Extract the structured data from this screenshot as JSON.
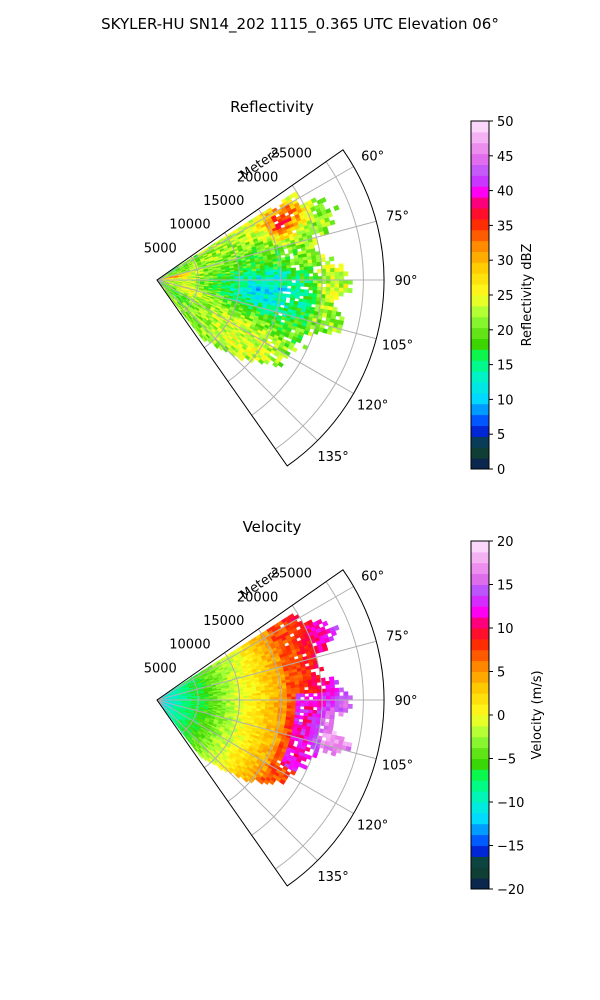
{
  "title": "SKYLER-HU  SN14_202  1115_0.365 UTC Elevation 06°",
  "chart_data": [
    {
      "type": "heatmap",
      "title": "Reflectivity",
      "radial_label": "Meters",
      "radial_ticks": [
        "5000",
        "10000",
        "15000",
        "20000",
        "25000"
      ],
      "radial_values": [
        5000,
        10000,
        15000,
        20000,
        25000
      ],
      "rmax": 27500,
      "theta_range_deg": [
        55,
        145
      ],
      "angle_ticks": [
        "60°",
        "75°",
        "90°",
        "105°",
        "120°",
        "135°"
      ],
      "angle_values": [
        60,
        75,
        90,
        105,
        120,
        135
      ],
      "grid": true,
      "colorbar": {
        "label": "Reflectivity dBZ",
        "range": [
          0,
          50
        ],
        "ticks": [
          "0",
          "5",
          "10",
          "15",
          "20",
          "25",
          "30",
          "35",
          "40",
          "45",
          "50"
        ],
        "tick_values": [
          0,
          5,
          10,
          15,
          20,
          25,
          30,
          35,
          40,
          45,
          50
        ],
        "stops": [
          {
            "v": 0,
            "c": "#0a1a5c"
          },
          {
            "v": 2,
            "c": "#0e3b36"
          },
          {
            "v": 3.5,
            "c": "#0d4a2e"
          },
          {
            "v": 5,
            "c": "#0018c8"
          },
          {
            "v": 7,
            "c": "#0055ff"
          },
          {
            "v": 10,
            "c": "#00d8ff"
          },
          {
            "v": 13,
            "c": "#00f2d0"
          },
          {
            "v": 16,
            "c": "#00ff60"
          },
          {
            "v": 18,
            "c": "#3ed400"
          },
          {
            "v": 22,
            "c": "#9cff3a"
          },
          {
            "v": 25,
            "c": "#ffff20"
          },
          {
            "v": 29,
            "c": "#ffcc00"
          },
          {
            "v": 32,
            "c": "#ff8c00"
          },
          {
            "v": 35,
            "c": "#ff3000"
          },
          {
            "v": 37.5,
            "c": "#ff0040"
          },
          {
            "v": 40,
            "c": "#ff00ff"
          },
          {
            "v": 42,
            "c": "#b44dff"
          },
          {
            "v": 45,
            "c": "#e874e8"
          },
          {
            "v": 50,
            "c": "#ffe8ff"
          }
        ]
      }
    },
    {
      "type": "heatmap",
      "title": "Velocity",
      "radial_label": "Meters",
      "radial_ticks": [
        "5000",
        "10000",
        "15000",
        "20000",
        "25000"
      ],
      "radial_values": [
        5000,
        10000,
        15000,
        20000,
        25000
      ],
      "rmax": 27500,
      "theta_range_deg": [
        55,
        145
      ],
      "angle_ticks": [
        "60°",
        "75°",
        "90°",
        "105°",
        "120°",
        "135°"
      ],
      "angle_values": [
        60,
        75,
        90,
        105,
        120,
        135
      ],
      "grid": true,
      "colorbar": {
        "label": "Velocity (m/s)",
        "range": [
          -20,
          20
        ],
        "ticks": [
          "−20",
          "−15",
          "−10",
          "−5",
          "0",
          "5",
          "10",
          "15",
          "20"
        ],
        "tick_values": [
          -20,
          -15,
          -10,
          -5,
          0,
          5,
          10,
          15,
          20
        ],
        "stops": [
          {
            "v": -20,
            "c": "#0a1a5c"
          },
          {
            "v": -18.4,
            "c": "#0e3b36"
          },
          {
            "v": -17,
            "c": "#0d4a2e"
          },
          {
            "v": -16,
            "c": "#0018c8"
          },
          {
            "v": -14.5,
            "c": "#0055ff"
          },
          {
            "v": -12,
            "c": "#00d8ff"
          },
          {
            "v": -10,
            "c": "#00f2d0"
          },
          {
            "v": -7.2,
            "c": "#00ff60"
          },
          {
            "v": -5.5,
            "c": "#3ed400"
          },
          {
            "v": -2.5,
            "c": "#9cff3a"
          },
          {
            "v": 0,
            "c": "#ffff20"
          },
          {
            "v": 3,
            "c": "#ffcc00"
          },
          {
            "v": 5.5,
            "c": "#ff8c00"
          },
          {
            "v": 8,
            "c": "#ff3000"
          },
          {
            "v": 10,
            "c": "#ff0040"
          },
          {
            "v": 12,
            "c": "#ff00ff"
          },
          {
            "v": 14,
            "c": "#b44dff"
          },
          {
            "v": 16,
            "c": "#e874e8"
          },
          {
            "v": 20,
            "c": "#ffe8ff"
          }
        ]
      }
    }
  ]
}
